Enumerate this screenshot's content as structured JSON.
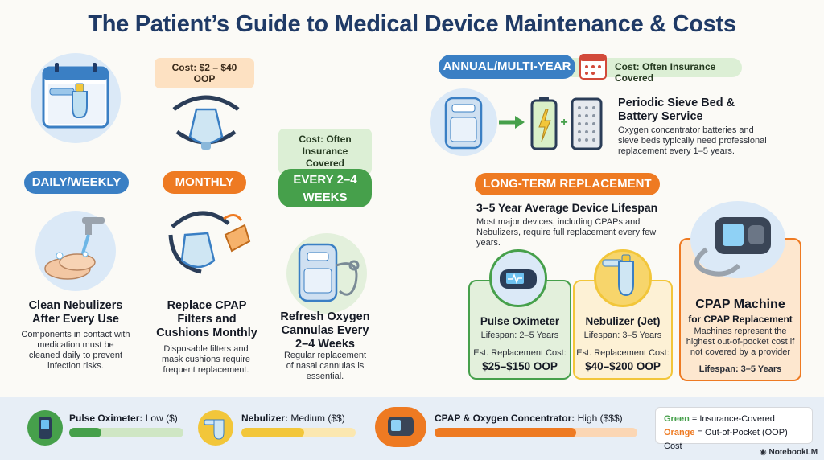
{
  "title": "The Patient’s Guide to Medical Device Maintenance & Costs",
  "left": {
    "daily": {
      "label": "DAILY/WEEKLY",
      "heading": "Clean Nebulizers After Every Use",
      "desc": "Components in contact with medication must be cleaned daily to prevent infection risks."
    },
    "monthly": {
      "cost": "Cost: $2 – $40 OOP",
      "label": "MONTHLY",
      "heading": "Replace CPAP Filters and Cushions Monthly",
      "desc": "Disposable filters and mask cushions require frequent replacement."
    },
    "weeks": {
      "cost": "Cost: Often Insurance Covered",
      "label": "EVERY 2–4 WEEKS",
      "heading": "Refresh Oxygen Cannulas Every 2–4 Weeks",
      "desc": "Regular replacement of nasal cannulas is essential."
    }
  },
  "annual": {
    "label": "ANNUAL/MULTI-YEAR",
    "cost": "Cost: Often Insurance Covered",
    "heading": "Periodic Sieve Bed & Battery Service",
    "desc": "Oxygen concentrator batteries and sieve beds typically need professional replacement every 1–5 years."
  },
  "longterm": {
    "label": "LONG-TERM REPLACEMENT",
    "heading": "3–5 Year Average Device Lifespan",
    "desc": "Most major devices, including CPAPs and Nebulizers, require full replacement every few years."
  },
  "cards": {
    "oximeter": {
      "title": "Pulse Oximeter",
      "lifespan": "Lifespan: 2–5 Years",
      "cost_label": "Est. Replacement Cost:",
      "cost": "$25–$150 OOP"
    },
    "nebulizer": {
      "title": "Nebulizer (Jet)",
      "lifespan": "Lifespan: 3–5 Years",
      "cost_label": "Est. Replacement Cost:",
      "cost": "$40–$200 OOP"
    },
    "cpap": {
      "title": "CPAP Machine",
      "subtitle": "for CPAP Replacement",
      "desc": "Machines represent the highest out-of-pocket cost if not covered by a provider",
      "lifespan": "Lifespan: 3–5 Years"
    }
  },
  "bottom": {
    "items": [
      {
        "name": "Pulse Oximeter:",
        "level": "Low ($)",
        "fill": 0.28,
        "color": "#46a04b"
      },
      {
        "name": "Nebulizer:",
        "level": "Medium ($$)",
        "fill": 0.55,
        "color": "#f2c63a"
      },
      {
        "name": "CPAP & Oxygen Concentrator:",
        "level": "High ($$$)",
        "fill": 0.7,
        "color": "#ee7a22"
      }
    ],
    "legend": {
      "green_word": "Green",
      "green_text": " = Insurance-Covered",
      "orange_word": "Orange",
      "orange_text": " = Out-of-Pocket (OOP) Cost"
    },
    "brand": "NotebookLM"
  }
}
